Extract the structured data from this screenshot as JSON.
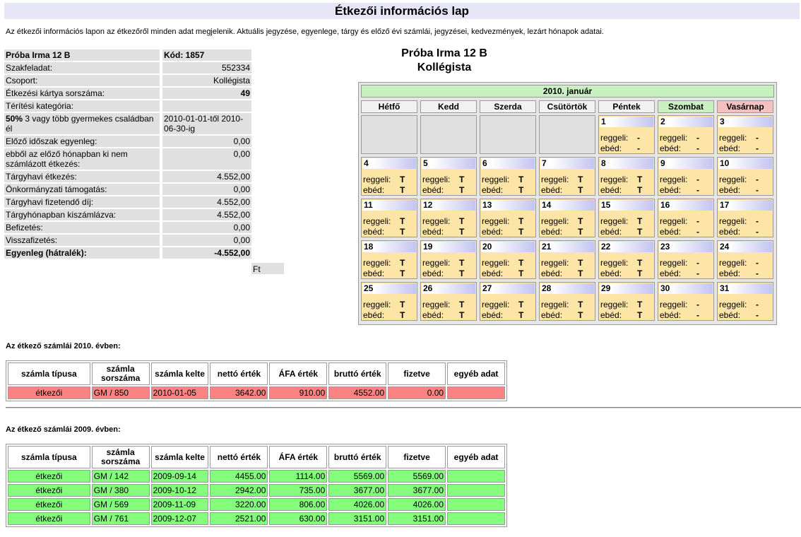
{
  "page": {
    "title": "Étkezői információs lap",
    "description": "Az étkezői információs lapon az étkezőről minden adat megjelenik. Aktuális jegyzése, egyenlege, tárgy és előző évi számlái, jegyzései, kedvezmények, lezárt hónapok adatai."
  },
  "info": {
    "name": "Próba Irma 12 B",
    "code": "Kód: 1857",
    "rows": [
      {
        "label": "Szakfeladat:",
        "value": "552334"
      },
      {
        "label": "Csoport:",
        "value": "Kollégista"
      },
      {
        "label": "Étkezési kártya sorszáma:",
        "value": "49"
      },
      {
        "label": "Térítési kategória:",
        "value": ""
      },
      {
        "label_bold": "50%",
        "label": " 3 vagy több gyermekes családban él",
        "value": "2010-01-01-től 2010-06-30-ig"
      },
      {
        "label": "Előző időszak egyenleg:",
        "value": "0,00"
      },
      {
        "label": " ebből az előző hónapban ki nem számlázott étkezés:",
        "value": "0,00"
      },
      {
        "label": "Tárgyhavi étkezés:",
        "value": "4.552,00"
      },
      {
        "label": "Önkormányzati támogatás:",
        "value": "0,00"
      },
      {
        "label": "Tárgyhavi fizetendő díj:",
        "value": "4.552,00"
      },
      {
        "label": "Tárgyhónapban kiszámlázva:",
        "value": "4.552,00"
      },
      {
        "label": "Befizetés:",
        "value": "0,00"
      },
      {
        "label": "Visszafizetés:",
        "value": "0,00"
      }
    ],
    "balance_label": "Egyenleg (hátralék):",
    "balance_value": "-4.552,00",
    "balance_unit": "Ft"
  },
  "student": {
    "name": "Próba Irma 12 B",
    "group": "Kollégista"
  },
  "calendar": {
    "month": "2010. január",
    "days": [
      "Hétfő",
      "Kedd",
      "Szerda",
      "Csütörtök",
      "Péntek",
      "Szombat",
      "Vasárnap"
    ],
    "meal1": "reggeli:",
    "meal2": "ebéd:",
    "start_offset": 4,
    "entries": [
      {
        "d": "1",
        "b": "-",
        "l": "-"
      },
      {
        "d": "2",
        "b": "-",
        "l": "-"
      },
      {
        "d": "3",
        "b": "-",
        "l": "-"
      },
      {
        "d": "4",
        "b": "T",
        "l": "T"
      },
      {
        "d": "5",
        "b": "T",
        "l": "T"
      },
      {
        "d": "6",
        "b": "T",
        "l": "T"
      },
      {
        "d": "7",
        "b": "T",
        "l": "T"
      },
      {
        "d": "8",
        "b": "T",
        "l": "T"
      },
      {
        "d": "9",
        "b": "-",
        "l": "-"
      },
      {
        "d": "10",
        "b": "-",
        "l": "-"
      },
      {
        "d": "11",
        "b": "T",
        "l": "T"
      },
      {
        "d": "12",
        "b": "T",
        "l": "T"
      },
      {
        "d": "13",
        "b": "T",
        "l": "T"
      },
      {
        "d": "14",
        "b": "T",
        "l": "T"
      },
      {
        "d": "15",
        "b": "T",
        "l": "T"
      },
      {
        "d": "16",
        "b": "-",
        "l": "-"
      },
      {
        "d": "17",
        "b": "-",
        "l": "-"
      },
      {
        "d": "18",
        "b": "T",
        "l": "T"
      },
      {
        "d": "19",
        "b": "T",
        "l": "T"
      },
      {
        "d": "20",
        "b": "T",
        "l": "T"
      },
      {
        "d": "21",
        "b": "T",
        "l": "T"
      },
      {
        "d": "22",
        "b": "T",
        "l": "T"
      },
      {
        "d": "23",
        "b": "-",
        "l": "-"
      },
      {
        "d": "24",
        "b": "-",
        "l": "-"
      },
      {
        "d": "25",
        "b": "T",
        "l": "T"
      },
      {
        "d": "26",
        "b": "T",
        "l": "T"
      },
      {
        "d": "27",
        "b": "T",
        "l": "T"
      },
      {
        "d": "28",
        "b": "T",
        "l": "T"
      },
      {
        "d": "29",
        "b": "T",
        "l": "T"
      },
      {
        "d": "30",
        "b": "-",
        "l": "-"
      },
      {
        "d": "31",
        "b": "-",
        "l": "-"
      }
    ]
  },
  "invoice_headers": [
    "számla típusa",
    "számla sorszáma",
    "számla kelte",
    "nettó érték",
    "ÁFA érték",
    "bruttó érték",
    "fizetve",
    "egyéb adat"
  ],
  "invoices2010": {
    "heading": "Az étkező számlái 2010. évben:",
    "color": "#fb8383",
    "rows": [
      [
        "étkezői",
        "GM / 850",
        "2010-01-05",
        "3642.00",
        "910.00",
        "4552.00",
        "0.00",
        ""
      ]
    ]
  },
  "invoices2009": {
    "heading": "Az étkező számlái 2009. évben:",
    "color": "#84fc7c",
    "rows": [
      [
        "étkezői",
        "GM / 142",
        "2009-09-14",
        "4455.00",
        "1114.00",
        "5569.00",
        "5569.00",
        ""
      ],
      [
        "étkezői",
        "GM / 380",
        "2009-10-12",
        "2942.00",
        "735.00",
        "3677.00",
        "3677.00",
        ""
      ],
      [
        "étkezői",
        "GM / 569",
        "2009-11-09",
        "3220.00",
        "806.00",
        "4026.00",
        "4026.00",
        ""
      ],
      [
        "étkezői",
        "GM / 761",
        "2009-12-07",
        "2521.00",
        "630.00",
        "3151.00",
        "3151.00",
        ""
      ]
    ]
  }
}
